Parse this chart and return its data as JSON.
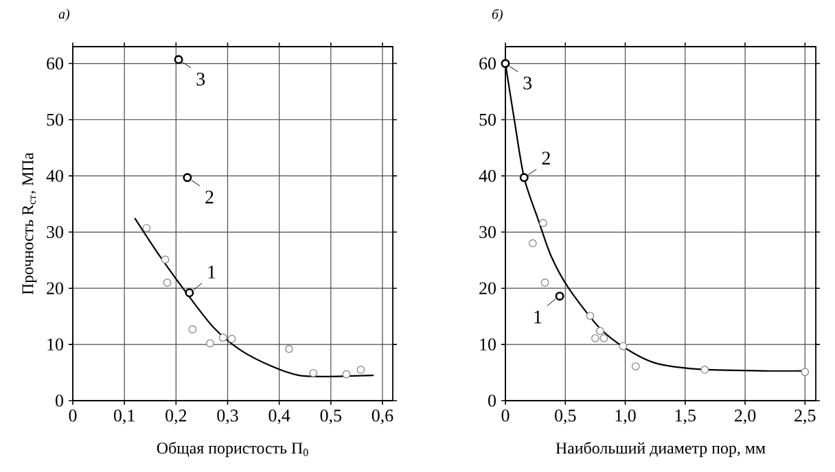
{
  "chart_data": [
    {
      "type": "scatter",
      "title": "а)",
      "xlabel": "Общая пористость П$_{0}$",
      "ylabel": "Прочность R$_{ст}$, МПа",
      "xlim": [
        0,
        0.62
      ],
      "ylim": [
        0,
        63
      ],
      "xticks": [
        {
          "value": 0,
          "label": "0"
        },
        {
          "value": 0.1,
          "label": "0,1"
        },
        {
          "value": 0.2,
          "label": "0,2"
        },
        {
          "value": 0.3,
          "label": "0,3"
        },
        {
          "value": 0.4,
          "label": "0,4"
        },
        {
          "value": 0.5,
          "label": "0,5"
        },
        {
          "value": 0.6,
          "label": "0,6"
        }
      ],
      "yticks": [
        0,
        10,
        20,
        30,
        40,
        50,
        60
      ],
      "grid": true,
      "series": [
        {
          "type": "line",
          "marker": "none",
          "color": "#000000",
          "x": [
            0.12,
            0.168,
            0.22,
            0.272,
            0.325,
            0.386,
            0.438,
            0.49,
            0.583
          ],
          "values": [
            32.5,
            25.8,
            19.2,
            13.1,
            9.0,
            6.1,
            4.5,
            4.3,
            4.5
          ]
        },
        {
          "marker": "circle",
          "color": "#8c8c8c",
          "x": [
            0.143,
            0.179,
            0.183,
            0.232,
            0.266,
            0.291,
            0.308,
            0.419,
            0.466,
            0.53,
            0.558
          ],
          "values": [
            30.7,
            25.1,
            21.0,
            12.7,
            10.2,
            11.2,
            11.0,
            9.2,
            4.9,
            4.7,
            5.5
          ]
        },
        {
          "marker": "circle",
          "color": "#000000",
          "x": [
            0.226,
            0.222,
            0.205
          ],
          "values": [
            19.2,
            39.7,
            60.7
          ]
        }
      ],
      "annotations": [
        {
          "text": "1",
          "x": 0.226,
          "y": 19.2
        },
        {
          "text": "2",
          "x": 0.222,
          "y": 39.7
        },
        {
          "text": "3",
          "x": 0.205,
          "y": 60.7
        }
      ]
    },
    {
      "type": "scatter",
      "title": "б)",
      "xlabel": "Наибольший диаметр пор, мм",
      "xlim": [
        0,
        2.59
      ],
      "ylim": [
        0,
        63
      ],
      "xticks": [
        {
          "value": 0,
          "label": "0"
        },
        {
          "value": 0.5,
          "label": "0,5"
        },
        {
          "value": 1.0,
          "label": "1,0"
        },
        {
          "value": 1.5,
          "label": "1,5"
        },
        {
          "value": 2.0,
          "label": "2,0"
        },
        {
          "value": 2.5,
          "label": "2,5"
        }
      ],
      "yticks": [
        0,
        10,
        20,
        30,
        40,
        50,
        60
      ],
      "grid": true,
      "series": [
        {
          "type": "line",
          "marker": "none",
          "color": "#000000",
          "x": [
            0,
            0.072,
            0.156,
            0.272,
            0.38,
            0.525,
            0.779,
            0.996,
            1.25,
            1.612,
            2.156,
            2.5
          ],
          "values": [
            60,
            50.3,
            39.7,
            32.3,
            25.8,
            20.1,
            13.1,
            9.4,
            6.7,
            5.6,
            5.3,
            5.3
          ]
        },
        {
          "marker": "circle",
          "color": "#8c8c8c",
          "x": [
            0.228,
            0.315,
            0.33,
            0.707,
            0.75,
            0.79,
            0.822,
            0.982,
            1.087,
            1.663,
            2.5
          ],
          "values": [
            28.0,
            31.6,
            21.0,
            15.1,
            11.1,
            12.4,
            11.1,
            9.7,
            6.1,
            5.5,
            5.1
          ]
        },
        {
          "marker": "circle",
          "color": "#000000",
          "x": [
            0.453,
            0.156,
            0
          ],
          "values": [
            18.6,
            39.7,
            60
          ]
        }
      ],
      "annotations": [
        {
          "text": "1",
          "x": 0.453,
          "y": 18.6
        },
        {
          "text": "2",
          "x": 0.156,
          "y": 39.7
        },
        {
          "text": "3",
          "x": 0,
          "y": 60
        }
      ]
    }
  ]
}
